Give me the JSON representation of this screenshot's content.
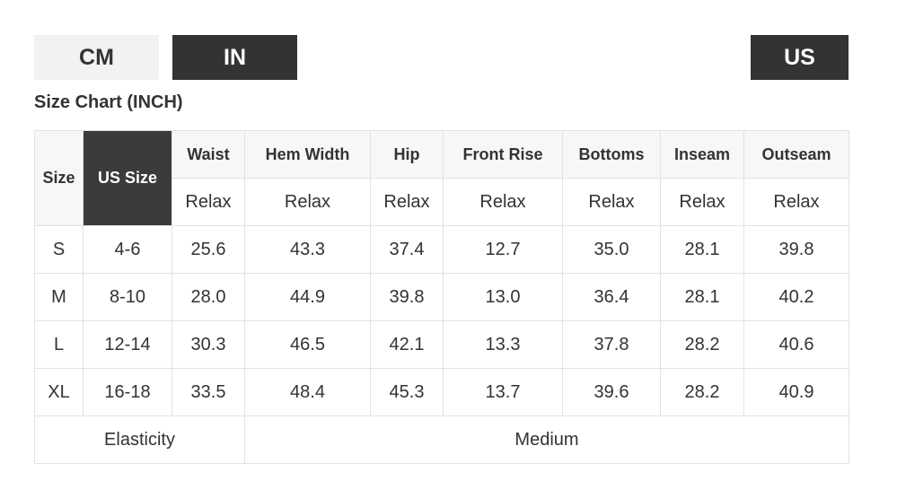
{
  "unit_tabs": [
    "CM",
    "IN"
  ],
  "region_tab": "US",
  "title": "Size Chart (INCH)",
  "table": {
    "header": [
      "Size",
      "US Size",
      "Waist",
      "Hem Width",
      "Hip",
      "Front Rise",
      "Bottoms",
      "Inseam",
      "Outseam"
    ],
    "subheader": [
      "Relax",
      "Relax",
      "Relax",
      "Relax",
      "Relax",
      "Relax",
      "Relax"
    ],
    "rows": [
      [
        "S",
        "4-6",
        "25.6",
        "43.3",
        "37.4",
        "12.7",
        "35.0",
        "28.1",
        "39.8"
      ],
      [
        "M",
        "8-10",
        "28.0",
        "44.9",
        "39.8",
        "13.0",
        "36.4",
        "28.1",
        "40.2"
      ],
      [
        "L",
        "12-14",
        "30.3",
        "46.5",
        "42.1",
        "13.3",
        "37.8",
        "28.2",
        "40.6"
      ],
      [
        "XL",
        "16-18",
        "33.5",
        "48.4",
        "45.3",
        "13.7",
        "39.6",
        "28.2",
        "40.9"
      ]
    ],
    "footer": [
      "Elasticity",
      "Medium"
    ]
  }
}
